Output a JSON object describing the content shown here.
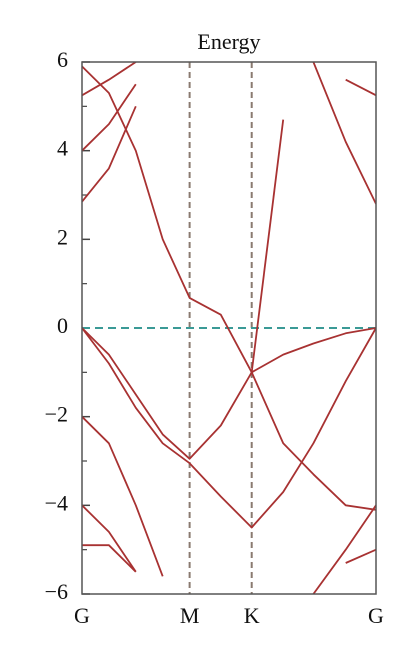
{
  "chart_data": {
    "type": "line",
    "title": "Energy",
    "x": [
      0,
      0.25,
      0.5,
      0.75,
      1,
      1.29,
      1.577,
      1.87,
      2.15,
      2.45,
      2.732
    ],
    "xlim": [
      0,
      2.732
    ],
    "xticks": [
      {
        "value": 0,
        "label": "G"
      },
      {
        "value": 1,
        "label": "M"
      },
      {
        "value": 1.577,
        "label": "K"
      },
      {
        "value": 2.732,
        "label": "G"
      }
    ],
    "ylim": [
      -6,
      6
    ],
    "yticks": [
      {
        "value": -6,
        "label": "−6"
      },
      {
        "value": -4,
        "label": "−4"
      },
      {
        "value": -2,
        "label": "−2"
      },
      0,
      2,
      4,
      6
    ],
    "fermi_level": 0,
    "color": "#a83232",
    "series": [
      {
        "values": [
          0,
          -0.6,
          -1.5,
          -2.4,
          -2.95,
          -2.2,
          -1.0,
          -0.6,
          -0.35,
          -0.12,
          0
        ]
      },
      {
        "values": [
          0,
          -0.8,
          -1.8,
          -2.6,
          -3.05,
          -3.8,
          -4.5,
          -3.7,
          -2.6,
          -1.2,
          0
        ]
      },
      {
        "values": [
          5.9,
          5.3,
          4.0,
          2.0,
          0.68,
          0.3,
          -1.0,
          -2.6,
          -3.3,
          -4.0,
          -4.1
        ]
      },
      {
        "values": [
          null,
          null,
          null,
          null,
          null,
          null,
          -1.0,
          4.7,
          null,
          null,
          null
        ]
      },
      {
        "values": [
          5.25,
          5.6,
          6.0,
          null,
          null,
          null,
          null,
          null,
          null,
          null,
          null
        ]
      },
      {
        "values": [
          4.0,
          4.6,
          5.5,
          null,
          null,
          null,
          null,
          null,
          null,
          null,
          null
        ]
      },
      {
        "values": [
          2.85,
          3.6,
          5.0,
          null,
          null,
          null,
          null,
          null,
          null,
          null,
          null
        ]
      },
      {
        "values": [
          null,
          null,
          null,
          null,
          null,
          null,
          null,
          null,
          6.0,
          4.2,
          2.8
        ]
      },
      {
        "values": [
          null,
          null,
          null,
          null,
          null,
          null,
          null,
          null,
          null,
          5.6,
          5.25
        ]
      },
      {
        "values": [
          -2.0,
          -2.6,
          -4.0,
          -5.6,
          null,
          null,
          null,
          null,
          null,
          null,
          null
        ]
      },
      {
        "values": [
          -4.0,
          -4.6,
          -5.5,
          null,
          null,
          null,
          null,
          null,
          null,
          null,
          null
        ]
      },
      {
        "values": [
          -4.9,
          -4.9,
          -5.5,
          null,
          null,
          null,
          null,
          null,
          null,
          null,
          null
        ]
      },
      {
        "values": [
          null,
          null,
          null,
          null,
          null,
          null,
          null,
          null,
          -6.0,
          -5.0,
          -4.0
        ]
      },
      {
        "values": [
          null,
          null,
          null,
          null,
          null,
          null,
          null,
          null,
          null,
          -5.3,
          -5.0
        ]
      }
    ]
  }
}
